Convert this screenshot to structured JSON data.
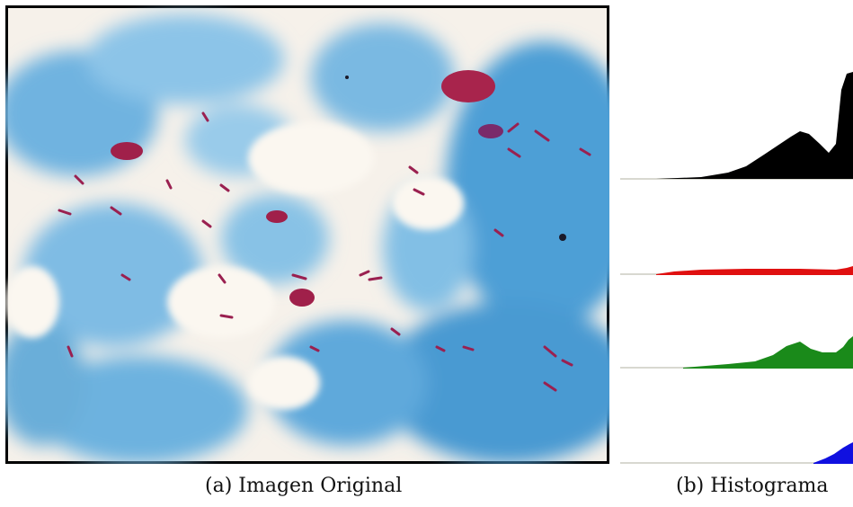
{
  "figure": {
    "panel_a": {
      "caption": "(a) Imagen Original"
    },
    "panel_b": {
      "caption": "(b) Histograma",
      "histograms": [
        {
          "channel": "luminance",
          "color": "#000000"
        },
        {
          "channel": "red",
          "color": "#e01010"
        },
        {
          "channel": "green",
          "color": "#1a8a1a"
        },
        {
          "channel": "blue",
          "color": "#1010e0"
        }
      ]
    }
  },
  "colors": {
    "stain_blue": "#5aa8d8",
    "stain_light": "#fbf6ef",
    "bacilli_red": "#a0204a"
  }
}
